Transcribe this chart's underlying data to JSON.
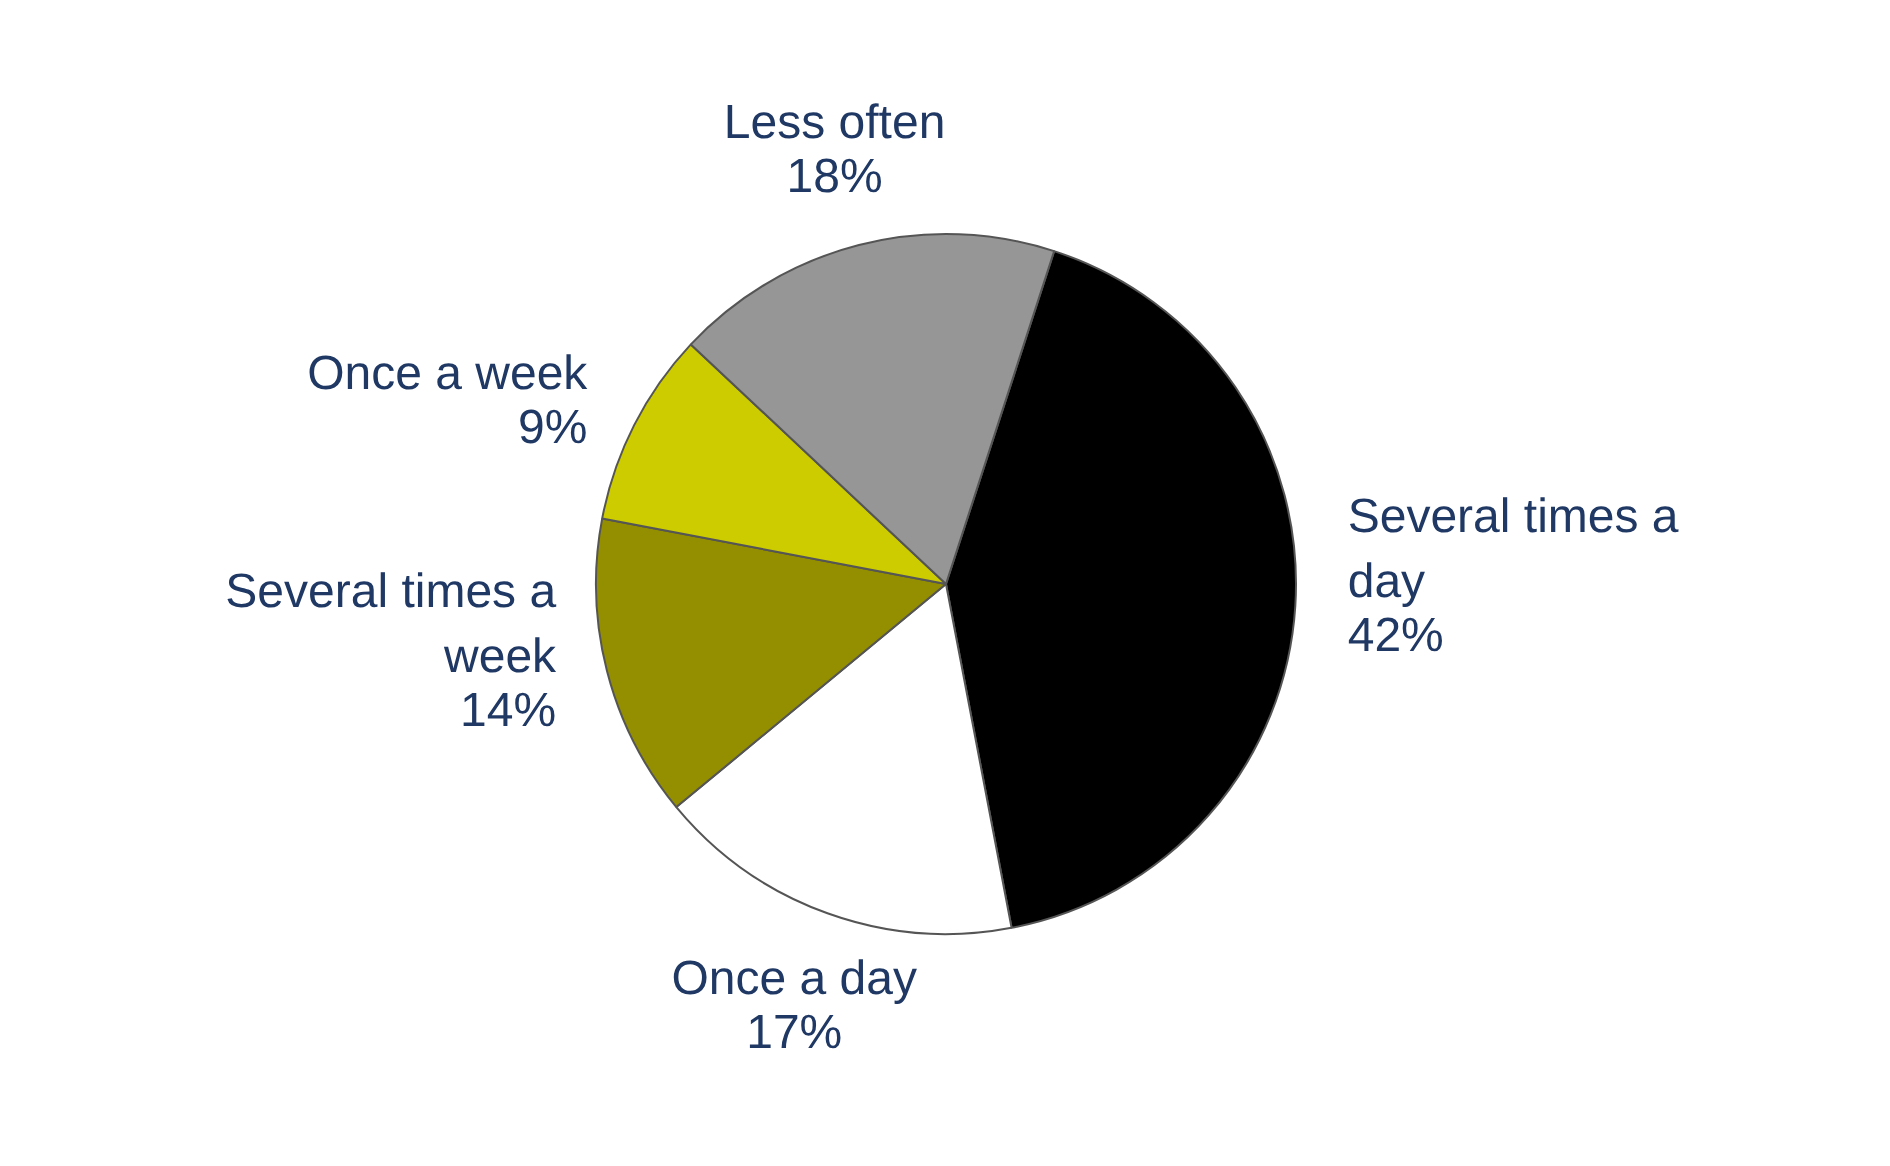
{
  "chart_data": {
    "type": "pie",
    "categories": [
      "Several times a day",
      "Once a day",
      "Several times a week",
      "Once a week",
      "Less often"
    ],
    "values": [
      42,
      17,
      14,
      9,
      18
    ],
    "colors": [
      "#000000",
      "#ffffff",
      "#948f00",
      "#cccc00",
      "#969696"
    ],
    "value_labels": [
      "42%",
      "17%",
      "14%",
      "9%",
      "18%"
    ],
    "legend": false
  }
}
